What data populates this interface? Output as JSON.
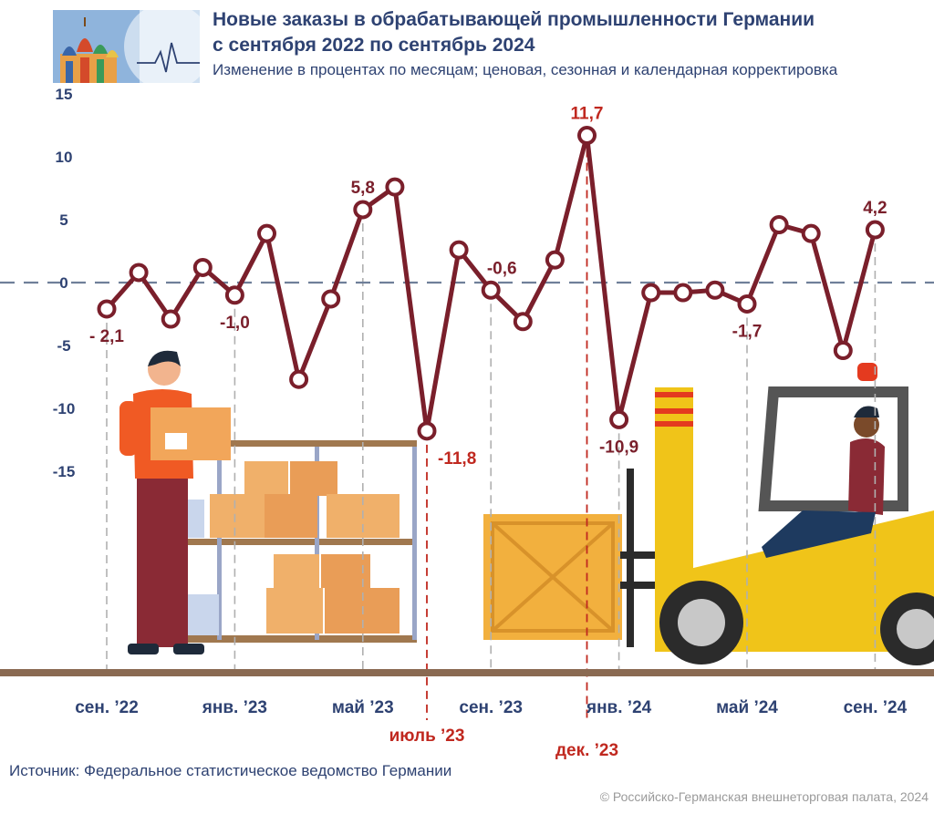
{
  "header": {
    "title_line1": "Новые заказы в обрабатывающей промышленности Германии",
    "title_line2": "с сентября 2022 по сентябрь 2024",
    "subtitle": "Изменение в процентах по месяцам; ценовая, сезонная и календарная корректировка"
  },
  "footer": {
    "source": "Источник: Федеральное статистическое ведомство Германии",
    "copyright": "© Российско-Германская внешнеторговая палата, 2024"
  },
  "colors": {
    "line": "#7a1f2b",
    "text": "#2e4272",
    "highlight": "#c0281f",
    "zero_line": "#6f7f99",
    "gridline": "#b0b0b0",
    "floor": "#8a6a52"
  },
  "chart_data": {
    "type": "line",
    "title": "Новые заказы в обрабатывающей промышленности Германии с сентября 2022 по сентябрь 2024",
    "subtitle": "Изменение в процентах по месяцам; ценовая, сезонная и календарная корректировка",
    "x": [
      "2022-09",
      "2022-10",
      "2022-11",
      "2022-12",
      "2023-01",
      "2023-02",
      "2023-03",
      "2023-04",
      "2023-05",
      "2023-06",
      "2023-07",
      "2023-08",
      "2023-09",
      "2023-10",
      "2023-11",
      "2023-12",
      "2024-01",
      "2024-02",
      "2024-03",
      "2024-04",
      "2024-05",
      "2024-06",
      "2024-07",
      "2024-08",
      "2024-09"
    ],
    "series": [
      {
        "values": [
          -2.1,
          0.8,
          -2.9,
          1.2,
          -1.0,
          3.9,
          -7.7,
          -1.3,
          5.8,
          7.6,
          -11.8,
          2.6,
          -0.6,
          -3.1,
          1.8,
          11.7,
          -10.9,
          -0.8,
          -0.8,
          -0.6,
          -1.7,
          4.6,
          3.9,
          -5.4,
          4.2
        ]
      }
    ],
    "ylim": [
      -15,
      15
    ],
    "yticks": [
      15,
      10,
      5,
      0,
      -5,
      -10,
      -15
    ],
    "ytick_labels": [
      "15",
      "10",
      "5",
      "0",
      "-5",
      "-10",
      "-15"
    ],
    "xtick_labels": [
      {
        "index": 0,
        "label": "сен. ’22"
      },
      {
        "index": 4,
        "label": "янв. ’23"
      },
      {
        "index": 8,
        "label": "май ’23"
      },
      {
        "index": 12,
        "label": "сен. ’23"
      },
      {
        "index": 16,
        "label": "янв. ’24"
      },
      {
        "index": 20,
        "label": "май ’24"
      },
      {
        "index": 24,
        "label": "сен. ’24"
      }
    ],
    "highlight_ticks": [
      {
        "index": 10,
        "label": "июль ’23"
      },
      {
        "index": 15,
        "label": "дек. ’23"
      }
    ],
    "data_labels": [
      {
        "index": 0,
        "text": "- 2,1"
      },
      {
        "index": 4,
        "text": "-1,0"
      },
      {
        "index": 8,
        "text": "5,8"
      },
      {
        "index": 10,
        "text": "-11,8"
      },
      {
        "index": 12,
        "text": "-0,6"
      },
      {
        "index": 15,
        "text": "11,7"
      },
      {
        "index": 16,
        "text": "-10,9"
      },
      {
        "index": 20,
        "text": "-1,7"
      },
      {
        "index": 24,
        "text": "4,2"
      }
    ],
    "grid": false
  }
}
